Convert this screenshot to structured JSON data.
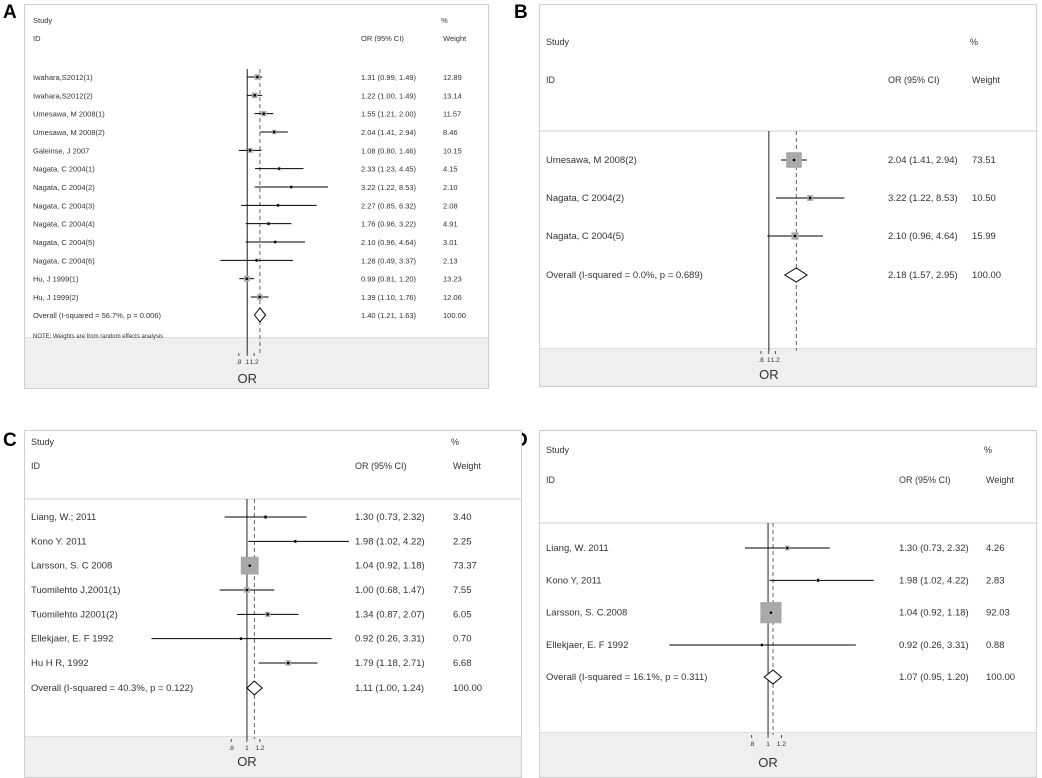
{
  "figure": {
    "background": "#ffffff",
    "band_color": "#efefef",
    "box_color": "#a9a9a9"
  },
  "chart_data": [
    {
      "panel_label": "A",
      "type": "forest",
      "header": {
        "study": "Study",
        "id": "ID",
        "or": "OR (95% CI)",
        "pct": "%",
        "weight": "Weight"
      },
      "xlabel": "OR",
      "ticks": [
        ".8",
        "1",
        "1.2"
      ],
      "null_value": 1,
      "scale": "log",
      "rows": [
        {
          "label": "Iwahara,S2012(1)",
          "or": 1.31,
          "lo": 0.99,
          "hi": 1.49,
          "ci_text": "1.31 (0.99, 1.49)",
          "weight": "12.89"
        },
        {
          "label": "Iwahara,S2012(2)",
          "or": 1.22,
          "lo": 1.0,
          "hi": 1.49,
          "ci_text": "1.22 (1.00, 1.49)",
          "weight": "13.14"
        },
        {
          "label": "Umesawa, M 2008(1)",
          "or": 1.55,
          "lo": 1.21,
          "hi": 2.0,
          "ci_text": "1.55 (1.21, 2.00)",
          "weight": "11.57"
        },
        {
          "label": "Umesawa, M 2008(2)",
          "or": 2.04,
          "lo": 1.41,
          "hi": 2.94,
          "ci_text": "2.04 (1.41, 2.94)",
          "weight": "8.46"
        },
        {
          "label": "Galeinse, J 2007",
          "or": 1.08,
          "lo": 0.8,
          "hi": 1.46,
          "ci_text": "1.08 (0.80, 1.46)",
          "weight": "10.15"
        },
        {
          "label": "Nagata, C 2004(1)",
          "or": 2.33,
          "lo": 1.23,
          "hi": 4.45,
          "ci_text": "2.33 (1.23, 4.45)",
          "weight": "4.15"
        },
        {
          "label": "Nagata, C 2004(2)",
          "or": 3.22,
          "lo": 1.22,
          "hi": 8.53,
          "ci_text": "3.22 (1.22, 8.53)",
          "weight": "2.10"
        },
        {
          "label": "Nagata, C 2004(3)",
          "or": 2.27,
          "lo": 0.85,
          "hi": 6.32,
          "ci_text": "2.27 (0.85, 6.32)",
          "weight": "2.08"
        },
        {
          "label": "Nagata, C 2004(4)",
          "or": 1.76,
          "lo": 0.96,
          "hi": 3.22,
          "ci_text": "1.76 (0.96, 3.22)",
          "weight": "4.91"
        },
        {
          "label": "Nagata, C 2004(5)",
          "or": 2.1,
          "lo": 0.96,
          "hi": 4.64,
          "ci_text": "2.10 (0.96, 4.64)",
          "weight": "3.01"
        },
        {
          "label": "Nagata, C 2004(6)",
          "or": 1.28,
          "lo": 0.49,
          "hi": 3.37,
          "ci_text": "1.28 (0.49, 3.37)",
          "weight": "2.13"
        },
        {
          "label": "Hu, J 1999(1)",
          "or": 0.99,
          "lo": 0.81,
          "hi": 1.2,
          "ci_text": "0.99 (0.81, 1.20)",
          "weight": "13.23"
        },
        {
          "label": "Hu, J 1999(2)",
          "or": 1.39,
          "lo": 1.1,
          "hi": 1.76,
          "ci_text": "1.39 (1.10, 1.76)",
          "weight": "12.06"
        }
      ],
      "overall": {
        "label": "Overall  (I-squared = 56.7%, p = 0.006)",
        "or": 1.4,
        "lo": 1.21,
        "hi": 1.63,
        "ci_text": "1.40 (1.21, 1.63)",
        "weight": "100.00"
      },
      "note": "NOTE: Weights are from random effects analysis"
    },
    {
      "panel_label": "B",
      "type": "forest",
      "header": {
        "study": "Study",
        "id": "ID",
        "or": "OR (95% CI)",
        "pct": "%",
        "weight": "Weight"
      },
      "xlabel": "OR",
      "ticks": [
        ".8",
        "1",
        "1.2"
      ],
      "null_value": 1,
      "scale": "log",
      "rows": [
        {
          "label": "Umesawa, M 2008(2)",
          "or": 2.04,
          "lo": 1.41,
          "hi": 2.94,
          "ci_text": "2.04 (1.41, 2.94)",
          "weight": "73.51"
        },
        {
          "label": "Nagata, C 2004(2)",
          "or": 3.22,
          "lo": 1.22,
          "hi": 8.53,
          "ci_text": "3.22 (1.22, 8.53)",
          "weight": "10.50"
        },
        {
          "label": "Nagata, C 2004(5)",
          "or": 2.1,
          "lo": 0.96,
          "hi": 4.64,
          "ci_text": "2.10 (0.96, 4.64)",
          "weight": "15.99"
        }
      ],
      "overall": {
        "label": "Overall  (I-squared = 0.0%, p = 0.689)",
        "or": 2.18,
        "lo": 1.57,
        "hi": 2.95,
        "ci_text": "2.18 (1.57, 2.95)",
        "weight": "100.00"
      },
      "note": ""
    },
    {
      "panel_label": "C",
      "type": "forest",
      "header": {
        "study": "Study",
        "id": "ID",
        "or": "OR (95% CI)",
        "pct": "%",
        "weight": "Weight"
      },
      "xlabel": "OR",
      "ticks": [
        ".8",
        "1",
        "1.2"
      ],
      "null_value": 1,
      "scale": "log",
      "rows": [
        {
          "label": "Liang, W.; 2011",
          "or": 1.3,
          "lo": 0.73,
          "hi": 2.32,
          "ci_text": "1.30 (0.73, 2.32)",
          "weight": "3.40"
        },
        {
          "label": "Kono Y. 2011",
          "or": 1.98,
          "lo": 1.02,
          "hi": 4.22,
          "ci_text": "1.98 (1.02, 4.22)",
          "weight": "2.25"
        },
        {
          "label": "Larsson, S. C 2008",
          "or": 1.04,
          "lo": 0.92,
          "hi": 1.18,
          "ci_text": "1.04 (0.92, 1.18)",
          "weight": "73.37"
        },
        {
          "label": "Tuomilehto J,2001(1)",
          "or": 1.0,
          "lo": 0.68,
          "hi": 1.47,
          "ci_text": "1.00 (0.68, 1.47)",
          "weight": "7.55"
        },
        {
          "label": "Tuomilehto J2001(2)",
          "or": 1.34,
          "lo": 0.87,
          "hi": 2.07,
          "ci_text": "1.34 (0.87, 2.07)",
          "weight": "6.05"
        },
        {
          "label": "Ellekjaer, E. F 1992",
          "or": 0.92,
          "lo": 0.26,
          "hi": 3.31,
          "ci_text": "0.92 (0.26, 3.31)",
          "weight": "0.70"
        },
        {
          "label": "Hu H R, 1992",
          "or": 1.79,
          "lo": 1.18,
          "hi": 2.71,
          "ci_text": "1.79 (1.18, 2.71)",
          "weight": "6.68"
        }
      ],
      "overall": {
        "label": "Overall  (I-squared = 40.3%, p = 0.122)",
        "or": 1.11,
        "lo": 1.0,
        "hi": 1.24,
        "ci_text": "1.11 (1.00, 1.24)",
        "weight": "100.00"
      },
      "note": ""
    },
    {
      "panel_label": "D",
      "type": "forest",
      "header": {
        "study": "Study",
        "id": "ID",
        "or": "OR (95% CI)",
        "pct": "%",
        "weight": "Weight"
      },
      "xlabel": "OR",
      "ticks": [
        ".8",
        "1",
        "1.2"
      ],
      "null_value": 1,
      "scale": "log",
      "rows": [
        {
          "label": "Liang, W. 2011",
          "or": 1.3,
          "lo": 0.73,
          "hi": 2.32,
          "ci_text": "1.30 (0.73, 2.32)",
          "weight": "4.26"
        },
        {
          "label": "Kono Y, 2011",
          "or": 1.98,
          "lo": 1.02,
          "hi": 4.22,
          "ci_text": "1.98 (1.02, 4.22)",
          "weight": "2.83"
        },
        {
          "label": "Larsson, S. C.2008",
          "or": 1.04,
          "lo": 0.92,
          "hi": 1.18,
          "ci_text": "1.04 (0.92, 1.18)",
          "weight": "92.03"
        },
        {
          "label": "Ellekjaer, E. F 1992",
          "or": 0.92,
          "lo": 0.26,
          "hi": 3.31,
          "ci_text": "0.92 (0.26, 3.31)",
          "weight": "0.88"
        }
      ],
      "overall": {
        "label": "Overall  (I-squared = 16.1%, p = 0.311)",
        "or": 1.07,
        "lo": 0.95,
        "hi": 1.2,
        "ci_text": "1.07 (0.95, 1.20)",
        "weight": "100.00"
      },
      "note": ""
    }
  ]
}
